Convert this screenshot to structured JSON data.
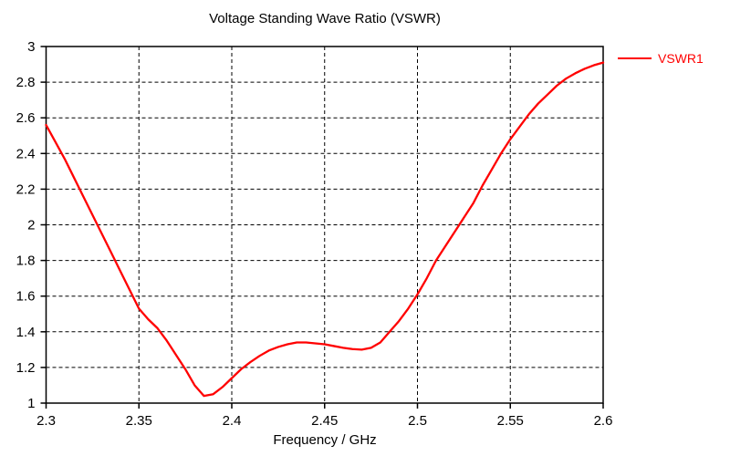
{
  "window": {
    "background": "#ffffff"
  },
  "chart_data": {
    "type": "line",
    "title": "Voltage Standing Wave Ratio (VSWR)",
    "xlabel": "Frequency / GHz",
    "ylabel": "",
    "xlim": [
      2.3,
      2.6
    ],
    "ylim": [
      1.0,
      3.0
    ],
    "x_ticks": [
      2.3,
      2.35,
      2.4,
      2.45,
      2.5,
      2.55,
      2.6
    ],
    "x_tick_labels": [
      "2.3",
      "2.35",
      "2.4",
      "2.45",
      "2.5",
      "2.55",
      "2.6"
    ],
    "y_ticks": [
      1,
      1.2,
      1.4,
      1.6,
      1.8,
      2,
      2.2,
      2.4,
      2.6,
      2.8,
      3
    ],
    "y_tick_labels": [
      "1",
      "1.2",
      "1.4",
      "1.6",
      "1.8",
      "2",
      "2.2",
      "2.4",
      "2.6",
      "2.8",
      "3"
    ],
    "grid": "dashed",
    "grid_color": "#000000",
    "axis_color": "#000000",
    "text_color": "#000000",
    "legend_position": "outside-top-right",
    "series": [
      {
        "name": "VSWR1",
        "color": "#ff0000",
        "x": [
          2.3,
          2.305,
          2.31,
          2.315,
          2.32,
          2.325,
          2.33,
          2.335,
          2.34,
          2.345,
          2.35,
          2.355,
          2.36,
          2.365,
          2.37,
          2.375,
          2.38,
          2.385,
          2.39,
          2.395,
          2.4,
          2.405,
          2.41,
          2.415,
          2.42,
          2.425,
          2.43,
          2.435,
          2.44,
          2.445,
          2.45,
          2.455,
          2.46,
          2.465,
          2.47,
          2.475,
          2.48,
          2.485,
          2.49,
          2.495,
          2.5,
          2.505,
          2.51,
          2.515,
          2.52,
          2.525,
          2.53,
          2.535,
          2.54,
          2.545,
          2.55,
          2.555,
          2.56,
          2.565,
          2.57,
          2.575,
          2.58,
          2.585,
          2.59,
          2.595,
          2.6
        ],
        "y": [
          2.56,
          2.465,
          2.37,
          2.265,
          2.16,
          2.055,
          1.95,
          1.845,
          1.74,
          1.635,
          1.53,
          1.47,
          1.42,
          1.35,
          1.27,
          1.19,
          1.1,
          1.04,
          1.05,
          1.09,
          1.14,
          1.19,
          1.23,
          1.265,
          1.295,
          1.315,
          1.33,
          1.34,
          1.34,
          1.335,
          1.33,
          1.32,
          1.31,
          1.303,
          1.3,
          1.31,
          1.34,
          1.4,
          1.46,
          1.53,
          1.61,
          1.7,
          1.8,
          1.88,
          1.96,
          2.04,
          2.12,
          2.22,
          2.31,
          2.4,
          2.48,
          2.55,
          2.62,
          2.68,
          2.73,
          2.78,
          2.82,
          2.85,
          2.875,
          2.895,
          2.91
        ]
      }
    ]
  }
}
